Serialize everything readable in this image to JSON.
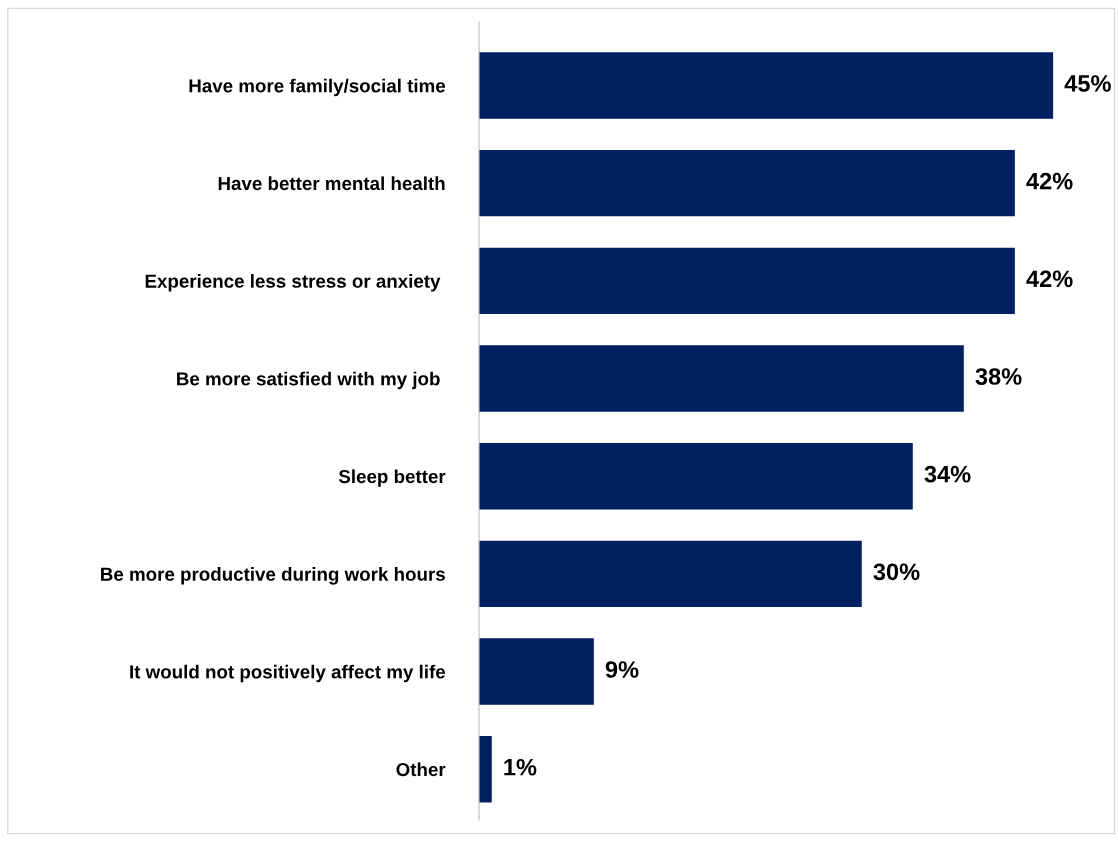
{
  "chart_data": {
    "type": "bar",
    "orientation": "horizontal",
    "categories": [
      "Have more family/social time",
      "Have better mental health",
      "Experience less stress or anxiety ",
      "Be more satisfied with my job ",
      "Sleep better",
      "Be more productive during work hours",
      "It would not positively affect my life",
      "Other"
    ],
    "values": [
      45,
      42,
      42,
      38,
      34,
      30,
      9,
      1
    ],
    "color": "#002060",
    "value_labels": [
      "45%",
      "42%",
      "42%",
      "38%",
      "34%",
      "30%",
      "9%",
      "1%"
    ],
    "grid": false,
    "legend": false
  }
}
